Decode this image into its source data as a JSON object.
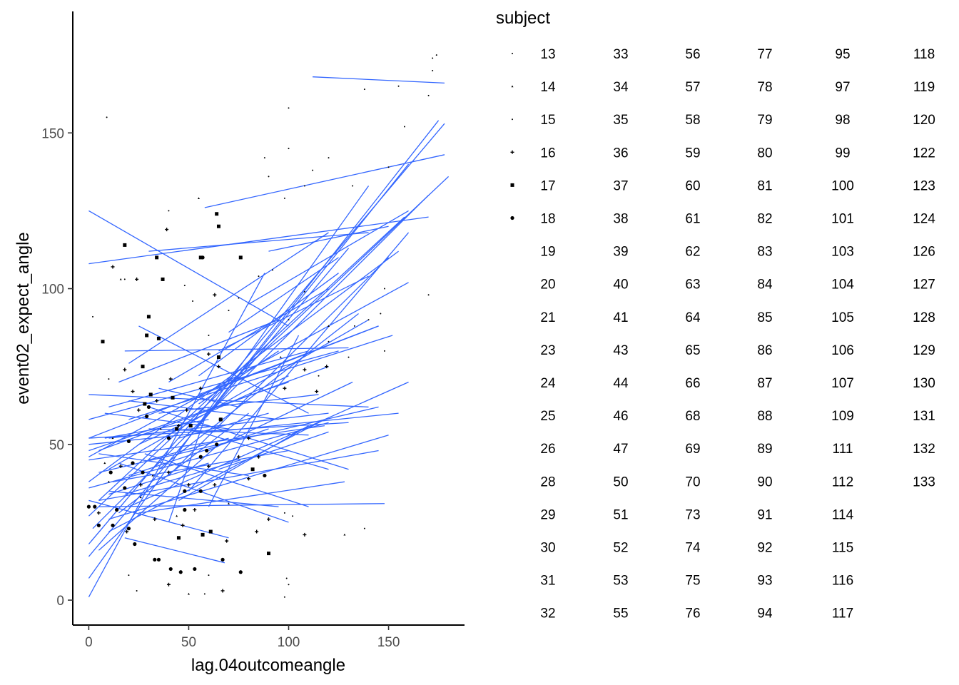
{
  "chart_data": {
    "type": "scatter",
    "xlabel": "lag.04outcomeangle",
    "ylabel": "event02_expect_angle",
    "xlim": [
      -8,
      188
    ],
    "ylim": [
      -8,
      189
    ],
    "x_ticks": [
      0,
      50,
      100,
      150
    ],
    "y_ticks": [
      0,
      50,
      100,
      150
    ],
    "grid": false,
    "legend_position": "right",
    "legend_title": "subject",
    "subjects": [
      "13",
      "14",
      "15",
      "16",
      "17",
      "18",
      "19",
      "20",
      "21",
      "23",
      "24",
      "25",
      "26",
      "28",
      "29",
      "30",
      "31",
      "32",
      "33",
      "34",
      "35",
      "36",
      "37",
      "38",
      "39",
      "40",
      "41",
      "43",
      "44",
      "46",
      "47",
      "50",
      "51",
      "52",
      "53",
      "55",
      "56",
      "57",
      "58",
      "59",
      "60",
      "61",
      "62",
      "63",
      "64",
      "65",
      "66",
      "68",
      "69",
      "70",
      "73",
      "74",
      "75",
      "76",
      "77",
      "78",
      "79",
      "80",
      "81",
      "82",
      "83",
      "84",
      "85",
      "86",
      "87",
      "88",
      "89",
      "90",
      "91",
      "92",
      "93",
      "94",
      "95",
      "97",
      "98",
      "99",
      "100",
      "101",
      "103",
      "104",
      "105",
      "106",
      "107",
      "109",
      "111",
      "112",
      "114",
      "115",
      "116",
      "117",
      "118",
      "119",
      "120",
      "122",
      "123",
      "124",
      "126",
      "127",
      "128",
      "129",
      "130",
      "131",
      "132",
      "133"
    ],
    "shape_legend": [
      {
        "subject": "13",
        "shape": "tiny-dot"
      },
      {
        "subject": "14",
        "shape": "tiny-triangle"
      },
      {
        "subject": "15",
        "shape": "tiny-dot"
      },
      {
        "subject": "16",
        "shape": "plus"
      },
      {
        "subject": "17",
        "shape": "square"
      },
      {
        "subject": "18",
        "shape": "dot"
      }
    ],
    "trend_lines": [
      [
        0,
        125,
        100,
        88
      ],
      [
        112,
        168,
        178,
        166
      ],
      [
        58,
        126,
        178,
        143
      ],
      [
        0,
        108,
        170,
        123
      ],
      [
        0,
        1,
        88,
        105
      ],
      [
        0,
        7,
        140,
        133
      ],
      [
        0,
        14,
        130,
        113
      ],
      [
        0,
        18,
        178,
        153
      ],
      [
        2,
        23,
        170,
        130
      ],
      [
        0,
        27,
        180,
        136
      ],
      [
        5,
        32,
        158,
        123
      ],
      [
        0,
        38,
        155,
        112
      ],
      [
        10,
        42,
        140,
        90
      ],
      [
        0,
        46,
        160,
        102
      ],
      [
        0,
        52,
        145,
        88
      ],
      [
        0,
        58,
        125,
        80
      ],
      [
        5,
        48,
        120,
        75
      ],
      [
        10,
        62,
        110,
        80
      ],
      [
        15,
        70,
        95,
        90
      ],
      [
        20,
        76,
        120,
        118
      ],
      [
        0,
        66,
        140,
        62
      ],
      [
        0,
        52,
        130,
        57
      ],
      [
        20,
        58,
        152,
        85
      ],
      [
        0,
        48,
        100,
        70
      ],
      [
        25,
        88,
        110,
        60
      ],
      [
        10,
        52,
        120,
        60
      ],
      [
        18,
        80,
        130,
        81
      ],
      [
        30,
        112,
        140,
        118
      ],
      [
        5,
        32,
        145,
        48
      ],
      [
        0,
        36,
        120,
        57
      ],
      [
        5,
        41,
        145,
        62
      ],
      [
        10,
        26,
        150,
        53
      ],
      [
        5,
        30,
        148,
        31
      ],
      [
        0,
        32,
        70,
        20
      ],
      [
        18,
        20,
        68,
        12
      ],
      [
        10,
        22,
        118,
        58
      ],
      [
        20,
        30,
        160,
        70
      ],
      [
        0,
        45,
        118,
        56
      ],
      [
        0,
        50,
        155,
        60
      ],
      [
        30,
        62,
        130,
        42
      ],
      [
        10,
        35,
        95,
        30
      ],
      [
        8,
        60,
        70,
        55
      ],
      [
        12,
        38,
        100,
        48
      ],
      [
        25,
        28,
        128,
        38
      ],
      [
        40,
        40,
        150,
        110
      ],
      [
        35,
        42,
        135,
        92
      ],
      [
        50,
        35,
        160,
        118
      ],
      [
        45,
        48,
        175,
        154
      ],
      [
        60,
        60,
        160,
        140
      ],
      [
        55,
        66,
        145,
        88
      ],
      [
        60,
        48,
        132,
        70
      ],
      [
        40,
        70,
        120,
        100
      ],
      [
        25,
        50,
        100,
        72
      ],
      [
        35,
        60,
        115,
        66
      ],
      [
        20,
        40,
        90,
        55
      ],
      [
        15,
        28,
        80,
        60
      ],
      [
        45,
        32,
        110,
        56
      ],
      [
        30,
        55,
        110,
        53
      ],
      [
        10,
        34,
        60,
        44
      ],
      [
        50,
        55,
        120,
        42
      ],
      [
        5,
        47,
        80,
        40
      ],
      [
        20,
        64,
        95,
        58
      ],
      [
        15,
        44,
        100,
        25
      ],
      [
        40,
        25,
        60,
        62
      ],
      [
        55,
        72,
        125,
        105
      ],
      [
        30,
        45,
        70,
        52
      ],
      [
        65,
        80,
        140,
        104
      ],
      [
        70,
        86,
        125,
        110
      ],
      [
        80,
        95,
        160,
        125
      ],
      [
        90,
        112,
        150,
        120
      ],
      [
        60,
        30,
        105,
        85
      ],
      [
        45,
        52,
        90,
        60
      ],
      [
        8,
        52,
        60,
        58
      ],
      [
        28,
        47,
        110,
        30
      ],
      [
        18,
        34,
        76,
        45
      ],
      [
        5,
        16,
        65,
        50
      ],
      [
        35,
        68,
        75,
        62
      ],
      [
        65,
        42,
        120,
        54
      ],
      [
        55,
        63,
        95,
        80
      ]
    ],
    "points": [
      [
        9,
        155,
        "tiny-dot"
      ],
      [
        55,
        129,
        "tiny-triangle"
      ],
      [
        40,
        125,
        "tiny-dot"
      ],
      [
        100,
        158,
        "tiny-dot"
      ],
      [
        138,
        164,
        "tiny-dot"
      ],
      [
        155,
        165,
        "tiny-dot"
      ],
      [
        170,
        162,
        "tiny-dot"
      ],
      [
        172,
        174,
        "tiny-dot"
      ],
      [
        174,
        175,
        "tiny-dot"
      ],
      [
        172,
        170,
        "tiny-dot"
      ],
      [
        158,
        152,
        "tiny-dot"
      ],
      [
        88,
        142,
        "tiny-dot"
      ],
      [
        100,
        145,
        "tiny-dot"
      ],
      [
        120,
        142,
        "tiny-dot"
      ],
      [
        112,
        138,
        "tiny-dot"
      ],
      [
        90,
        136,
        "tiny-dot"
      ],
      [
        108,
        133,
        "tiny-dot"
      ],
      [
        98,
        129,
        "tiny-dot"
      ],
      [
        132,
        133,
        "tiny-dot"
      ],
      [
        150,
        139,
        "tiny-dot"
      ],
      [
        170,
        98,
        "tiny-dot"
      ],
      [
        148,
        80,
        "tiny-dot"
      ],
      [
        133,
        88,
        "tiny-dot"
      ],
      [
        146,
        92,
        "tiny-dot"
      ],
      [
        148,
        100,
        "tiny-dot"
      ],
      [
        18,
        103,
        "tiny-dot"
      ],
      [
        12,
        107,
        "plus"
      ],
      [
        24,
        103,
        "plus"
      ],
      [
        39,
        119,
        "plus"
      ],
      [
        63,
        98,
        "plus"
      ],
      [
        98,
        68,
        "plus"
      ],
      [
        45,
        56,
        "plus"
      ],
      [
        60,
        79,
        "plus"
      ],
      [
        18,
        74,
        "plus"
      ],
      [
        65,
        75,
        "plus"
      ],
      [
        40,
        41,
        "plus"
      ],
      [
        25,
        61,
        "plus"
      ],
      [
        34,
        64,
        "plus"
      ],
      [
        49,
        61,
        "plus"
      ],
      [
        85,
        46,
        "plus"
      ],
      [
        60,
        43,
        "plus"
      ],
      [
        22,
        67,
        "plus"
      ],
      [
        41,
        71,
        "plus"
      ],
      [
        56,
        68,
        "plus"
      ],
      [
        80,
        52,
        "plus"
      ],
      [
        50,
        37,
        "plus"
      ],
      [
        63,
        37,
        "plus"
      ],
      [
        75,
        46,
        "plus"
      ],
      [
        80,
        39,
        "plus"
      ],
      [
        90,
        26,
        "plus"
      ],
      [
        108,
        21,
        "plus"
      ],
      [
        69,
        19,
        "plus"
      ],
      [
        40,
        5,
        "plus"
      ],
      [
        67,
        3,
        "plus"
      ],
      [
        53,
        29,
        "plus"
      ],
      [
        47,
        24,
        "plus"
      ],
      [
        33,
        26,
        "plus"
      ],
      [
        26,
        37,
        "plus"
      ],
      [
        16,
        43,
        "plus"
      ],
      [
        19,
        22,
        "plus"
      ],
      [
        5,
        28,
        "plus"
      ],
      [
        84,
        22,
        "plus"
      ],
      [
        108,
        74,
        "plus"
      ],
      [
        119,
        75,
        "plus"
      ],
      [
        114,
        67,
        "plus"
      ],
      [
        64,
        124,
        "square"
      ],
      [
        65,
        120,
        "square"
      ],
      [
        56,
        110,
        "square"
      ],
      [
        76,
        110,
        "square"
      ],
      [
        34,
        110,
        "square"
      ],
      [
        18,
        114,
        "square"
      ],
      [
        7,
        83,
        "square"
      ],
      [
        37,
        103,
        "square"
      ],
      [
        30,
        91,
        "square"
      ],
      [
        29,
        85,
        "square"
      ],
      [
        35,
        84,
        "square"
      ],
      [
        27,
        75,
        "square"
      ],
      [
        31,
        66,
        "square"
      ],
      [
        28,
        63,
        "square"
      ],
      [
        51,
        56,
        "square"
      ],
      [
        44,
        55,
        "square"
      ],
      [
        42,
        65,
        "square"
      ],
      [
        65,
        78,
        "square"
      ],
      [
        66,
        58,
        "square"
      ],
      [
        82,
        42,
        "square"
      ],
      [
        45,
        20,
        "square"
      ],
      [
        57,
        21,
        "square"
      ],
      [
        61,
        22,
        "square"
      ],
      [
        90,
        15,
        "square"
      ],
      [
        57,
        110,
        "dot"
      ],
      [
        33,
        13,
        "dot"
      ],
      [
        29,
        59,
        "dot"
      ],
      [
        30,
        62,
        "dot"
      ],
      [
        35,
        13,
        "dot"
      ],
      [
        41,
        10,
        "dot"
      ],
      [
        46,
        9,
        "dot"
      ],
      [
        53,
        10,
        "dot"
      ],
      [
        67,
        13,
        "dot"
      ],
      [
        76,
        9,
        "dot"
      ],
      [
        23,
        18,
        "dot"
      ],
      [
        20,
        23,
        "dot"
      ],
      [
        12,
        24,
        "dot"
      ],
      [
        14,
        29,
        "dot"
      ],
      [
        18,
        36,
        "dot"
      ],
      [
        11,
        41,
        "dot"
      ],
      [
        20,
        51,
        "dot"
      ],
      [
        48,
        35,
        "dot"
      ],
      [
        56,
        46,
        "dot"
      ],
      [
        59,
        48,
        "dot"
      ],
      [
        64,
        50,
        "dot"
      ],
      [
        88,
        40,
        "dot"
      ],
      [
        0,
        30,
        "dot"
      ],
      [
        3,
        30,
        "dot"
      ],
      [
        5,
        24,
        "dot"
      ],
      [
        48,
        29,
        "dot"
      ],
      [
        56,
        35,
        "dot"
      ],
      [
        40,
        52,
        "dot"
      ],
      [
        27,
        41,
        "dot"
      ],
      [
        66,
        58,
        "dot"
      ],
      [
        22,
        44,
        "dot"
      ],
      [
        115,
        72,
        "tiny-dot"
      ],
      [
        140,
        90,
        "tiny-dot"
      ],
      [
        130,
        78,
        "tiny-dot"
      ],
      [
        120,
        83,
        "tiny-dot"
      ],
      [
        100,
        90,
        "tiny-dot"
      ],
      [
        85,
        104,
        "tiny-dot"
      ],
      [
        92,
        106,
        "tiny-dot"
      ],
      [
        108,
        99,
        "tiny-dot"
      ],
      [
        75,
        97,
        "tiny-dot"
      ],
      [
        70,
        93,
        "tiny-dot"
      ],
      [
        60,
        85,
        "tiny-dot"
      ],
      [
        48,
        101,
        "tiny-dot"
      ],
      [
        52,
        96,
        "tiny-dot"
      ],
      [
        2,
        91,
        "tiny-dot"
      ],
      [
        10,
        71,
        "tiny-dot"
      ],
      [
        20,
        8,
        "tiny-dot"
      ],
      [
        24,
        3,
        "tiny-dot"
      ],
      [
        58,
        2,
        "tiny-dot"
      ],
      [
        60,
        8,
        "tiny-dot"
      ],
      [
        98,
        1,
        "tiny-dot"
      ],
      [
        99,
        7,
        "tiny-dot"
      ],
      [
        100,
        5,
        "tiny-dot"
      ],
      [
        98,
        28,
        "tiny-dot"
      ],
      [
        102,
        27,
        "tiny-dot"
      ],
      [
        138,
        23,
        "tiny-dot"
      ],
      [
        128,
        21,
        "tiny-triangle"
      ],
      [
        16,
        103,
        "tiny-triangle"
      ],
      [
        10,
        38,
        "tiny-triangle"
      ],
      [
        12,
        52,
        "tiny-triangle"
      ],
      [
        8,
        44,
        "tiny-triangle"
      ],
      [
        96,
        78,
        "tiny-triangle"
      ],
      [
        120,
        88,
        "tiny-triangle"
      ],
      [
        70,
        31,
        "tiny-triangle"
      ],
      [
        50,
        2,
        "tiny-triangle"
      ],
      [
        44,
        27,
        "tiny-triangle"
      ],
      [
        32,
        40,
        "tiny-triangle"
      ],
      [
        36,
        55,
        "tiny-triangle"
      ],
      [
        26,
        33,
        "tiny-triangle"
      ]
    ]
  }
}
